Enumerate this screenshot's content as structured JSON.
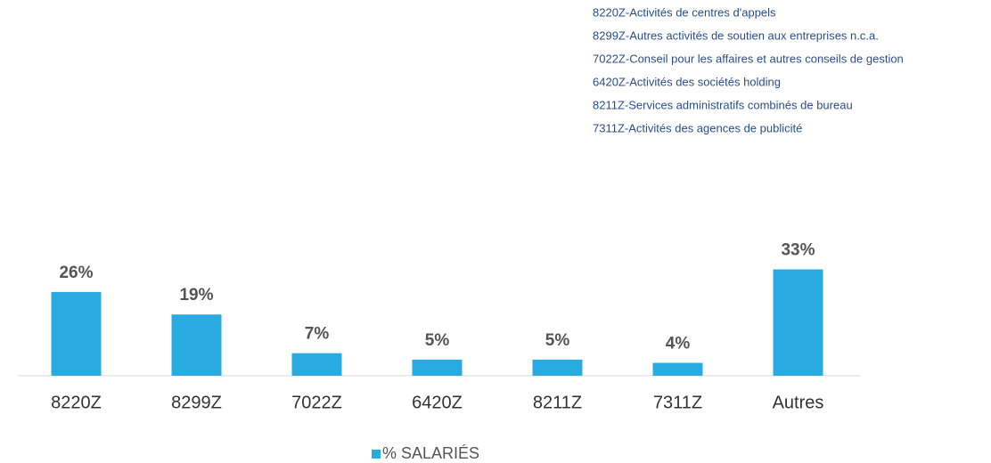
{
  "chart_data": {
    "type": "bar",
    "notes": [
      "8220Z-Activités de centres d'appels",
      "8299Z-Autres activités de soutien aux entreprises n.c.a.",
      "7022Z-Conseil pour les affaires et autres conseils de gestion",
      "6420Z-Activités des sociétés holding",
      "8211Z-Services administratifs combinés de bureau",
      "7311Z-Activités des agences de publicité"
    ],
    "categories": [
      "8220Z",
      "8299Z",
      "7022Z",
      "6420Z",
      "8211Z",
      "7311Z",
      "Autres"
    ],
    "series": [
      {
        "name": "% SALARIÉS",
        "color": "#29abe2",
        "values": [
          26,
          19,
          7,
          5,
          5,
          4,
          33
        ],
        "value_labels": [
          "26%",
          "19%",
          "7%",
          "5%",
          "5%",
          "4%",
          "33%"
        ]
      }
    ]
  }
}
